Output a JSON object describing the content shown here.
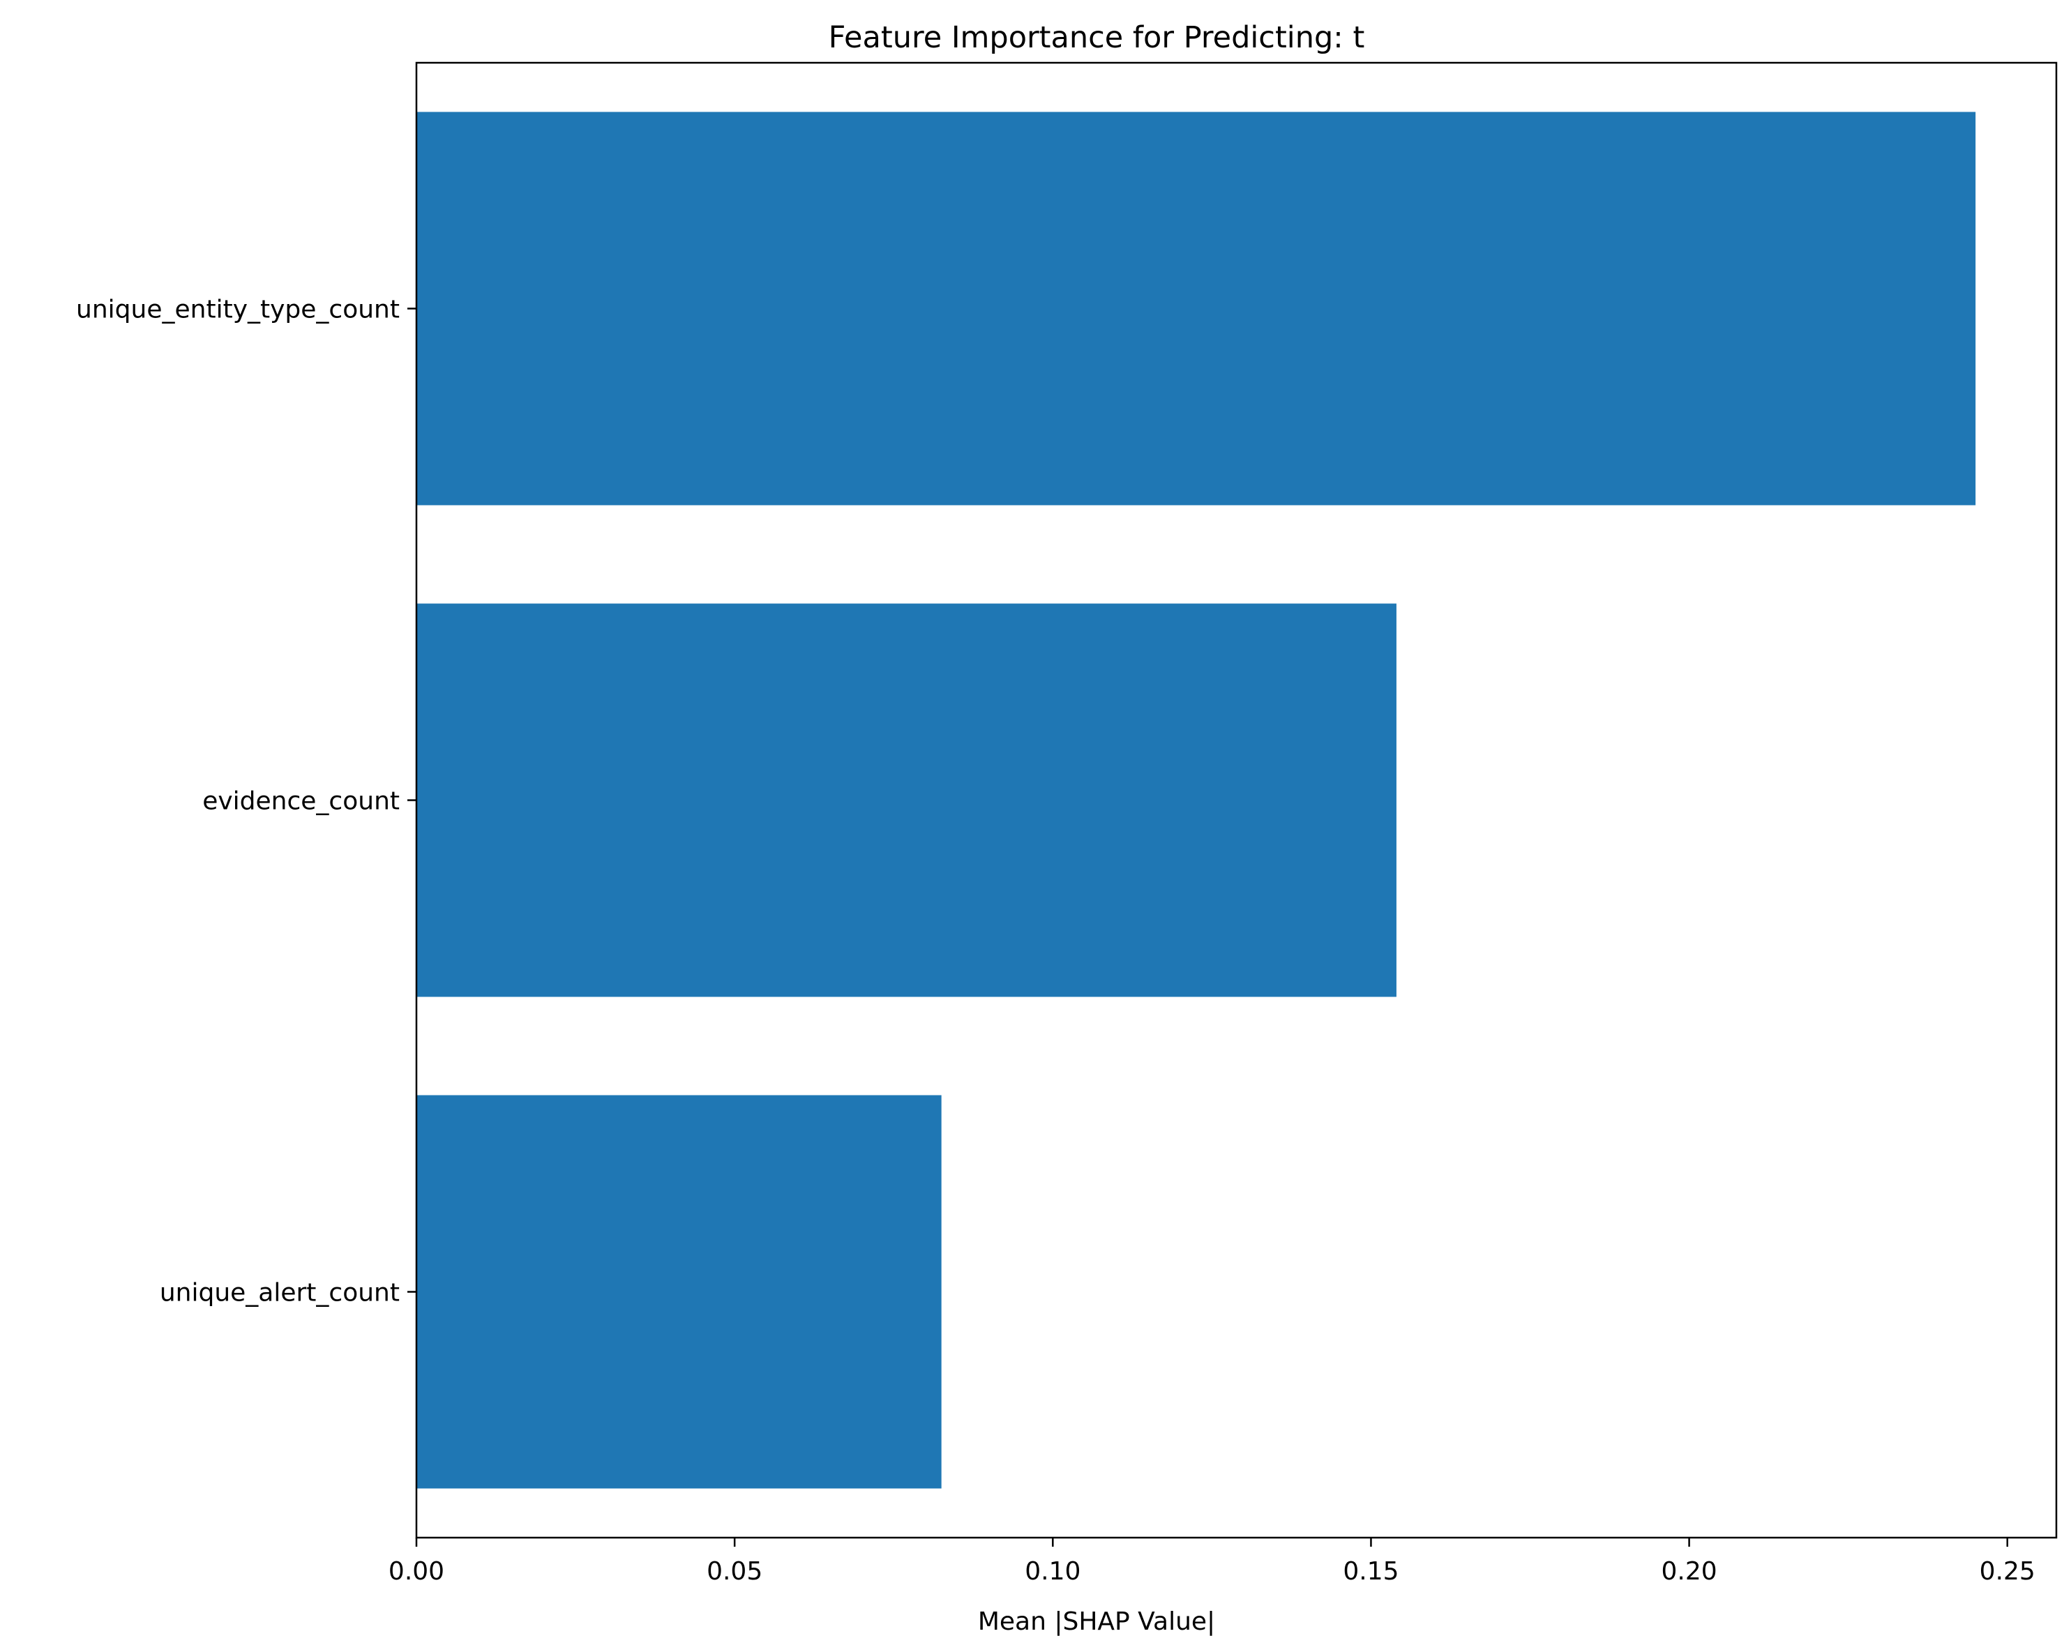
{
  "chart_data": {
    "type": "bar",
    "orientation": "horizontal",
    "title": "Feature Importance for Predicting: t",
    "xlabel": "Mean |SHAP Value|",
    "ylabel": "",
    "categories": [
      "unique_entity_type_count",
      "evidence_count",
      "unique_alert_count"
    ],
    "values": [
      0.245,
      0.154,
      0.0825
    ],
    "xlim": [
      0,
      0.2577
    ],
    "xticks": [
      0.0,
      0.05,
      0.1,
      0.15,
      0.2,
      0.25
    ],
    "xtick_labels": [
      "0.00",
      "0.05",
      "0.10",
      "0.15",
      "0.20",
      "0.25"
    ],
    "bar_color": "#1f77b4",
    "grid": false,
    "legend": "none"
  }
}
